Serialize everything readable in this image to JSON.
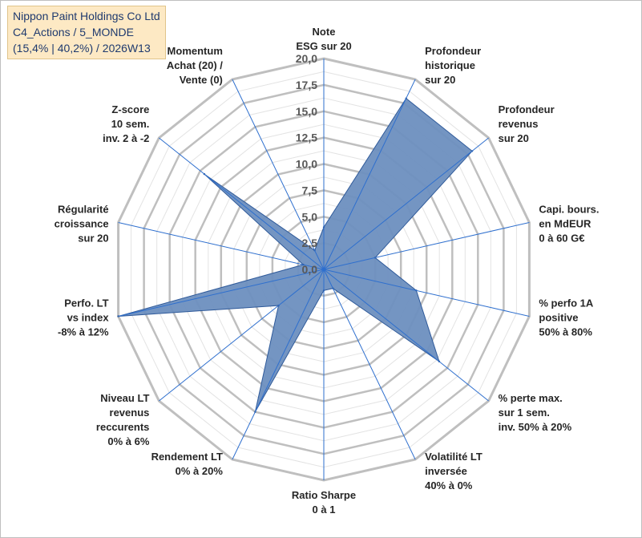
{
  "title": {
    "line1": "Nippon Paint Holdings Co Ltd",
    "line2": "C4_Actions / 5_MONDE",
    "line3": "(15,4% | 40,2%) / 2026W13"
  },
  "chart_data": {
    "type": "radar",
    "title": "Nippon Paint Holdings Co Ltd — C4_Actions / 5_MONDE — (15,4% | 40,2%) / 2026W13",
    "rlim": [
      0,
      20
    ],
    "ticks": [
      "0,0",
      "2,5",
      "5,0",
      "7,5",
      "10,0",
      "12,5",
      "15,0",
      "17,5",
      "20,0"
    ],
    "tick_values": [
      0,
      2.5,
      5,
      7.5,
      10,
      12.5,
      15,
      17.5,
      20
    ],
    "grid": true,
    "axes": [
      {
        "label": [
          "Note",
          "ESG sur 20"
        ],
        "value": 4.0
      },
      {
        "label": [
          "Profondeur",
          "historique",
          "sur 20"
        ],
        "value": 18.0
      },
      {
        "label": [
          "Profondeur",
          "revenus",
          "sur 20"
        ],
        "value": 18.0
      },
      {
        "label": [
          "Capi. bours.",
          "en MdEUR",
          "0 à 60 G€"
        ],
        "value": 5.0
      },
      {
        "label": [
          "% perfo 1A",
          "positive",
          "50% à 80%"
        ],
        "value": 9.0
      },
      {
        "label": [
          "% perte max.",
          "sur 1 sem.",
          "inv. 50% à 20%"
        ],
        "value": 14.0
      },
      {
        "label": [
          "Volatilité LT",
          "inversée",
          "40% à 0%"
        ],
        "value": 2.0
      },
      {
        "label": [
          "Ratio Sharpe",
          "0 à 1"
        ],
        "value": 2.0
      },
      {
        "label": [
          "Rendement LT",
          "0% à 20%"
        ],
        "value": 15.0
      },
      {
        "label": [
          "Niveau LT",
          "revenus",
          "reccurents",
          "0% à 6%"
        ],
        "value": 5.5
      },
      {
        "label": [
          "Perfo. LT",
          "vs index",
          "-8% à 12%"
        ],
        "value": 20.0
      },
      {
        "label": [
          "Régularité",
          "croissance",
          "sur 20"
        ],
        "value": 2.0
      },
      {
        "label": [
          "Z-score",
          "10 sem.",
          "inv. 2 à -2"
        ],
        "value": 14.5
      },
      {
        "label": [
          "Momentum",
          "Achat (20) /",
          "Vente (0)"
        ],
        "value": 2.0
      }
    ],
    "series": [
      {
        "name": "Nippon Paint Holdings Co Ltd",
        "fill": "#6d8fbf",
        "stroke": "#2f5a9a"
      }
    ],
    "grid_color": "#bfbfbf",
    "minor_grid_color": "#e3e3e3",
    "axis_color": "#2e6fce"
  }
}
